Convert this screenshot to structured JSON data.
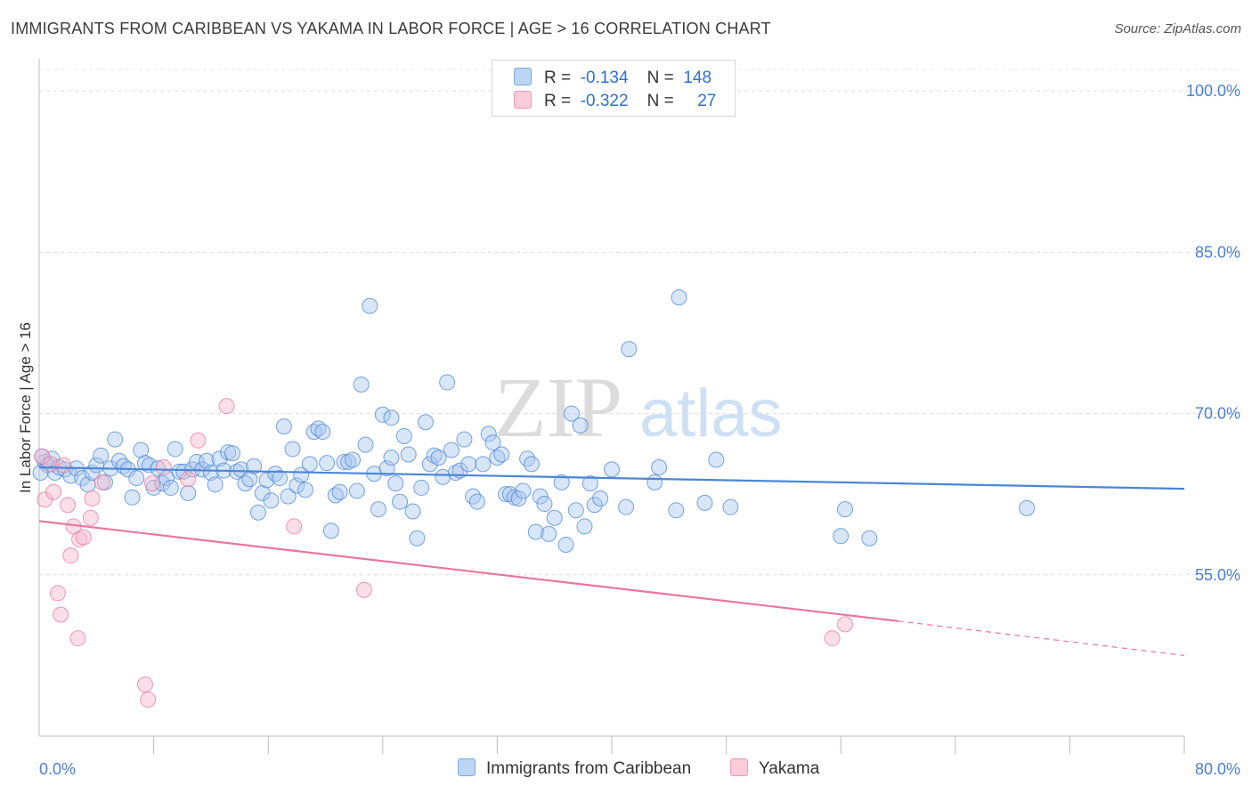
{
  "header": {
    "title": "IMMIGRANTS FROM CARIBBEAN VS YAKAMA IN LABOR FORCE | AGE > 16 CORRELATION CHART",
    "source": "Source: ZipAtlas.com"
  },
  "watermark": {
    "zip": "ZIP",
    "atlas": "atlas"
  },
  "legend": {
    "rows": [
      {
        "r_label": "R =",
        "r_value": "-0.134",
        "n_label": "N =",
        "n_value": "148",
        "color": "#a9c8f0"
      },
      {
        "r_label": "R =",
        "r_value": "-0.322",
        "n_label": "N =",
        "n_value": "27",
        "color": "#f6b8cb"
      }
    ]
  },
  "chart_data": {
    "type": "scatter",
    "title": "IMMIGRANTS FROM CARIBBEAN VS YAKAMA IN LABOR FORCE | AGE > 16 CORRELATION CHART",
    "xlabel": "",
    "ylabel": "In Labor Force | Age > 16",
    "xlim": [
      0,
      80
    ],
    "ylim": [
      40,
      102
    ],
    "x_tick_labels": [
      "0.0%",
      "80.0%"
    ],
    "y_ticks": [
      {
        "value": 100,
        "label": "100.0%"
      },
      {
        "value": 85,
        "label": "85.0%"
      },
      {
        "value": 70,
        "label": "70.0%"
      },
      {
        "value": 55,
        "label": "55.0%"
      }
    ],
    "grid": true,
    "series": [
      {
        "name": "Immigrants from Caribbean",
        "color": "#4a86d8",
        "fill": "#a9c8f0",
        "trend": {
          "x0": 0,
          "y0": 65.0,
          "x1": 80,
          "y1": 63.0
        },
        "points": [
          [
            0.4,
            65.5
          ],
          [
            0.6,
            65.2
          ],
          [
            0.9,
            65.8
          ],
          [
            1.1,
            64.5
          ],
          [
            1.4,
            65.0
          ],
          [
            1.8,
            64.8
          ],
          [
            2.2,
            64.2
          ],
          [
            2.6,
            64.9
          ],
          [
            3.0,
            64.0
          ],
          [
            3.4,
            63.4
          ],
          [
            3.7,
            64.5
          ],
          [
            4.0,
            65.2
          ],
          [
            4.3,
            66.1
          ],
          [
            4.6,
            63.6
          ],
          [
            5.0,
            64.9
          ],
          [
            5.3,
            67.6
          ],
          [
            5.6,
            65.6
          ],
          [
            5.9,
            65.1
          ],
          [
            6.2,
            64.8
          ],
          [
            6.5,
            62.2
          ],
          [
            6.8,
            64.0
          ],
          [
            7.1,
            66.6
          ],
          [
            7.4,
            65.4
          ],
          [
            7.7,
            65.2
          ],
          [
            8.0,
            63.1
          ],
          [
            8.3,
            64.9
          ],
          [
            8.6,
            63.5
          ],
          [
            8.9,
            64.0
          ],
          [
            9.2,
            63.1
          ],
          [
            9.5,
            66.7
          ],
          [
            9.8,
            64.6
          ],
          [
            10.1,
            64.6
          ],
          [
            10.4,
            62.6
          ],
          [
            10.7,
            64.8
          ],
          [
            11.0,
            65.5
          ],
          [
            11.4,
            64.8
          ],
          [
            11.7,
            65.6
          ],
          [
            12.0,
            64.5
          ],
          [
            12.3,
            63.4
          ],
          [
            12.6,
            65.8
          ],
          [
            12.9,
            64.7
          ],
          [
            13.2,
            66.4
          ],
          [
            13.5,
            66.3
          ],
          [
            13.8,
            64.6
          ],
          [
            14.1,
            64.8
          ],
          [
            14.4,
            63.5
          ],
          [
            14.7,
            63.9
          ],
          [
            15.0,
            65.1
          ],
          [
            15.3,
            60.8
          ],
          [
            15.6,
            62.6
          ],
          [
            15.9,
            63.8
          ],
          [
            16.2,
            61.9
          ],
          [
            16.5,
            64.4
          ],
          [
            16.8,
            64.0
          ],
          [
            17.1,
            68.8
          ],
          [
            17.4,
            62.3
          ],
          [
            17.7,
            66.7
          ],
          [
            18.0,
            63.3
          ],
          [
            18.3,
            64.3
          ],
          [
            18.6,
            62.9
          ],
          [
            18.9,
            65.3
          ],
          [
            19.2,
            68.3
          ],
          [
            19.5,
            68.6
          ],
          [
            19.8,
            68.3
          ],
          [
            20.1,
            65.4
          ],
          [
            20.4,
            59.1
          ],
          [
            20.7,
            62.4
          ],
          [
            21.0,
            62.7
          ],
          [
            21.3,
            65.5
          ],
          [
            21.6,
            65.5
          ],
          [
            21.9,
            65.7
          ],
          [
            22.2,
            62.8
          ],
          [
            22.5,
            72.7
          ],
          [
            22.8,
            67.1
          ],
          [
            23.1,
            80.0
          ],
          [
            23.4,
            64.4
          ],
          [
            23.7,
            61.1
          ],
          [
            24.0,
            69.9
          ],
          [
            24.3,
            64.9
          ],
          [
            24.6,
            65.9
          ],
          [
            24.9,
            63.5
          ],
          [
            25.2,
            61.8
          ],
          [
            25.5,
            67.9
          ],
          [
            25.8,
            66.2
          ],
          [
            26.1,
            60.9
          ],
          [
            26.4,
            58.4
          ],
          [
            26.7,
            63.1
          ],
          [
            27.0,
            69.2
          ],
          [
            27.3,
            65.3
          ],
          [
            27.6,
            66.1
          ],
          [
            27.9,
            65.9
          ],
          [
            28.2,
            64.1
          ],
          [
            28.5,
            72.9
          ],
          [
            28.8,
            66.6
          ],
          [
            29.1,
            64.5
          ],
          [
            29.4,
            64.7
          ],
          [
            29.7,
            67.6
          ],
          [
            30.0,
            65.3
          ],
          [
            30.3,
            62.3
          ],
          [
            30.6,
            61.8
          ],
          [
            31.0,
            65.3
          ],
          [
            31.4,
            68.1
          ],
          [
            31.7,
            67.3
          ],
          [
            32.0,
            65.9
          ],
          [
            32.3,
            66.2
          ],
          [
            32.6,
            62.5
          ],
          [
            32.9,
            62.5
          ],
          [
            33.2,
            62.2
          ],
          [
            33.5,
            62.1
          ],
          [
            33.8,
            62.8
          ],
          [
            34.1,
            65.8
          ],
          [
            34.4,
            65.3
          ],
          [
            34.7,
            59.0
          ],
          [
            35.0,
            62.3
          ],
          [
            35.3,
            61.6
          ],
          [
            35.6,
            58.8
          ],
          [
            36.0,
            60.3
          ],
          [
            36.5,
            63.6
          ],
          [
            36.8,
            57.8
          ],
          [
            37.2,
            70.0
          ],
          [
            37.5,
            61.0
          ],
          [
            37.8,
            68.9
          ],
          [
            38.1,
            59.5
          ],
          [
            38.5,
            63.5
          ],
          [
            38.8,
            61.5
          ],
          [
            39.2,
            62.1
          ],
          [
            40.0,
            64.8
          ],
          [
            41.0,
            61.3
          ],
          [
            41.2,
            76.0
          ],
          [
            43.0,
            63.6
          ],
          [
            43.3,
            65.0
          ],
          [
            44.5,
            61.0
          ],
          [
            46.5,
            61.7
          ],
          [
            47.3,
            65.7
          ],
          [
            48.3,
            61.3
          ],
          [
            56.0,
            58.6
          ],
          [
            56.3,
            61.1
          ],
          [
            58.0,
            58.4
          ],
          [
            69.0,
            61.2
          ],
          [
            0.1,
            64.5
          ],
          [
            0.2,
            66.0
          ],
          [
            44.7,
            80.8
          ],
          [
            24.6,
            69.6
          ]
        ]
      },
      {
        "name": "Yakama",
        "color": "#e9779c",
        "fill": "#f6b8cb",
        "trend": {
          "x0": 0,
          "y0": 60.0,
          "x1": 60.0,
          "y1": 50.7,
          "dash_x1": 80,
          "dash_y1": 47.5
        },
        "points": [
          [
            0.2,
            66.0
          ],
          [
            0.4,
            62.0
          ],
          [
            0.8,
            65.3
          ],
          [
            1.0,
            62.7
          ],
          [
            1.3,
            53.3
          ],
          [
            1.5,
            51.3
          ],
          [
            1.7,
            65.2
          ],
          [
            2.0,
            61.5
          ],
          [
            2.2,
            56.8
          ],
          [
            2.4,
            59.5
          ],
          [
            2.7,
            49.1
          ],
          [
            2.8,
            58.3
          ],
          [
            3.1,
            58.5
          ],
          [
            3.6,
            60.3
          ],
          [
            3.7,
            62.1
          ],
          [
            4.4,
            63.6
          ],
          [
            7.4,
            44.8
          ],
          [
            7.6,
            43.4
          ],
          [
            7.9,
            63.5
          ],
          [
            8.7,
            65.0
          ],
          [
            10.4,
            63.9
          ],
          [
            11.1,
            67.5
          ],
          [
            13.1,
            70.7
          ],
          [
            17.8,
            59.5
          ],
          [
            22.7,
            53.6
          ],
          [
            55.4,
            49.1
          ],
          [
            56.3,
            50.4
          ]
        ]
      }
    ]
  },
  "bottom_legend": {
    "items": [
      {
        "label": "Immigrants from Caribbean",
        "color": "#a9c8f0"
      },
      {
        "label": "Yakama",
        "color": "#f6b8cb"
      }
    ]
  }
}
